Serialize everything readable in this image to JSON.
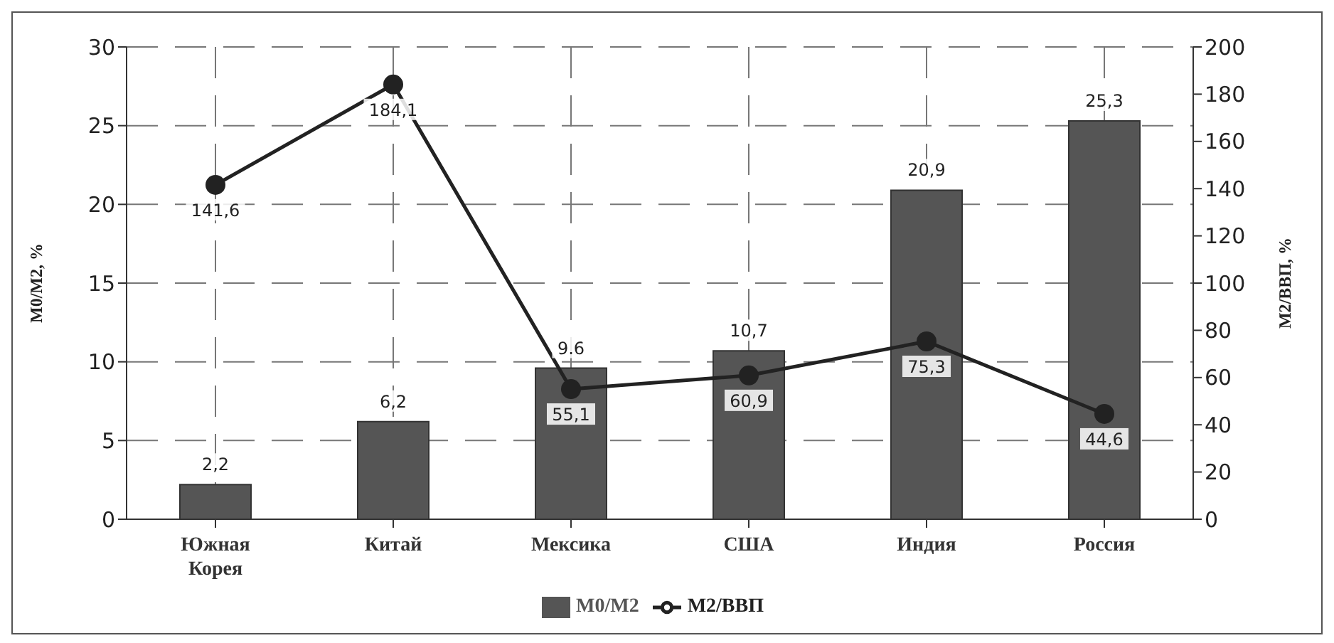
{
  "chart_data": {
    "type": "bar",
    "ylabel": "М0/М2, %",
    "y2label": "М2/ВВП, %",
    "categories": [
      "Южная Корея",
      "Китай",
      "Мексика",
      "США",
      "Индия",
      "Россия"
    ],
    "series": [
      {
        "name": "М0/М2",
        "color": "#555555",
        "values": [
          2.2,
          6.2,
          9.6,
          10.7,
          20.9,
          25.3
        ],
        "value_labels": [
          "2,2",
          "6,2",
          "9.6",
          "10,7",
          "20,9",
          "25,3"
        ]
      },
      {
        "name": "М2/ВВП",
        "type": "line",
        "axis": "y2",
        "color": "#222222",
        "values": [
          141.6,
          184.1,
          55.1,
          60.9,
          75.3,
          44.6
        ],
        "value_labels": [
          "141,6",
          "184,1",
          "55,1",
          "60,9",
          "75,3",
          "44,6"
        ]
      }
    ],
    "ylim": [
      0,
      30
    ],
    "yticks": [
      0,
      5,
      10,
      15,
      20,
      25,
      30
    ],
    "y2lim": [
      0,
      200
    ],
    "y2ticks": [
      0,
      20,
      40,
      60,
      80,
      100,
      120,
      140,
      160,
      180,
      200
    ],
    "grid": true,
    "legend": "bottom",
    "marker": "circle",
    "line_style": "solid"
  }
}
